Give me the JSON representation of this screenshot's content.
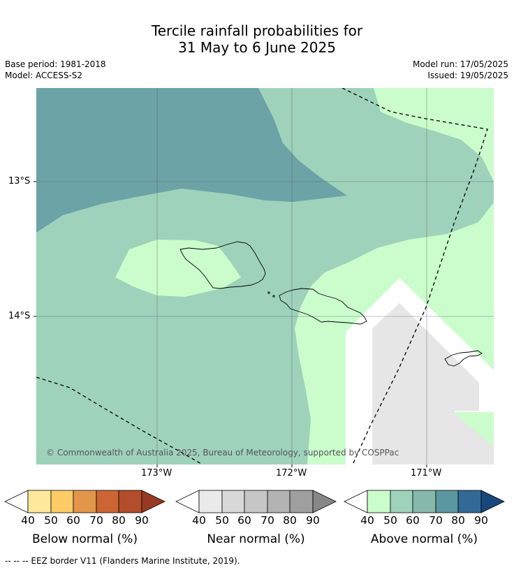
{
  "title_line1": "Tercile rainfall probabilities for",
  "title_line2": "31 May to 6 June 2025",
  "meta": {
    "base_period": "Base period: 1981-2018",
    "model": "Model: ACCESS-S2",
    "model_run": "Model run: 17/05/2025",
    "issued": "Issued: 19/05/2025"
  },
  "axes": {
    "lat_labels": [
      "13°S",
      "14°S"
    ],
    "lon_labels": [
      "173°W",
      "172°W",
      "171°W"
    ]
  },
  "attribution": "© Commonwealth of Australia 2025, Bureau of Meteorology, supported by COSPPac",
  "colorbars": [
    {
      "label": "Below normal (%)",
      "ticks": [
        "40",
        "50",
        "60",
        "70",
        "80",
        "90"
      ],
      "colors": [
        "#ffffff",
        "#fee89b",
        "#fdcb66",
        "#e2964a",
        "#cc6534",
        "#b34d2c",
        "#983a23"
      ]
    },
    {
      "label": "Near normal (%)",
      "ticks": [
        "40",
        "50",
        "60",
        "70",
        "80",
        "90"
      ],
      "colors": [
        "#ffffff",
        "#eaeaea",
        "#d8d8d8",
        "#c6c6c6",
        "#b3b3b3",
        "#9f9f9f",
        "#878787"
      ]
    },
    {
      "label": "Above normal (%)",
      "ticks": [
        "40",
        "50",
        "60",
        "70",
        "80",
        "90"
      ],
      "colors": [
        "#ffffff",
        "#cafdcb",
        "#9ed2bb",
        "#86b8ab",
        "#5b97a0",
        "#336996",
        "#18477d"
      ]
    }
  ],
  "footnote": "--  --  -- EEZ border V11 (Flanders Marine Institute, 2019)."
}
